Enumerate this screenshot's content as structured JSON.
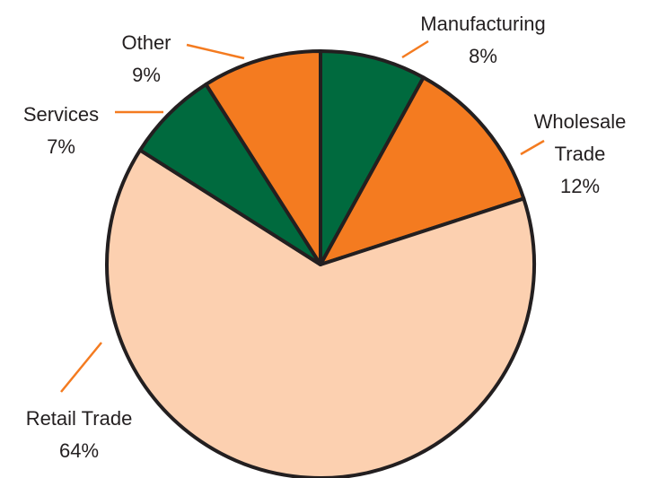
{
  "chart_data": {
    "type": "pie",
    "categories": [
      "Manufacturing",
      "Wholesale Trade",
      "Retail Trade",
      "Services",
      "Other"
    ],
    "values": [
      8,
      12,
      64,
      7,
      9
    ],
    "value_labels": [
      "8%",
      "12%",
      "64%",
      "7%",
      "9%"
    ],
    "colors": [
      "#006a3e",
      "#f47b20",
      "#fcd0b0",
      "#006a3e",
      "#f47b20"
    ]
  }
}
